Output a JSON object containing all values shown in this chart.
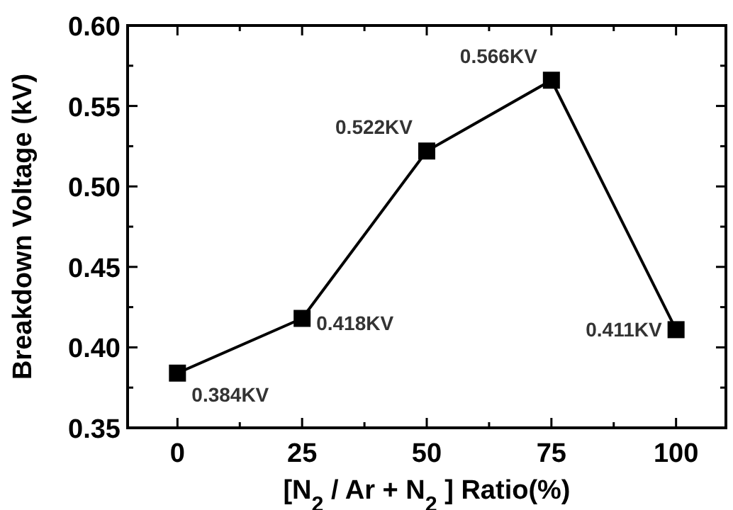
{
  "chart_data": {
    "type": "line",
    "xlabel": "[N$_{2}$ / Ar + N$_{2}$ ] Ratio(%)",
    "ylabel": "Breakdown Voltage (kV)",
    "x": [
      0,
      25,
      50,
      75,
      100
    ],
    "series": [
      {
        "color": "#000000",
        "values": [
          0.384,
          0.418,
          0.522,
          0.566,
          0.411
        ],
        "value_labels": [
          "0.384KV",
          "0.418KV",
          "0.522KV",
          "0.566KV",
          "0.411KV"
        ]
      }
    ],
    "xlim": [
      -10,
      110
    ],
    "xticks": [
      0,
      {
        "value": 12.5,
        "label": null
      },
      25,
      {
        "value": 37.5,
        "label": null
      },
      50,
      {
        "value": 62.5,
        "label": null
      },
      75,
      {
        "value": 87.5,
        "label": null
      },
      100
    ],
    "ylim": [
      0.35,
      0.6
    ],
    "yticks": [
      {
        "value": 0.35,
        "label": "0.35"
      },
      {
        "value": 0.375,
        "label": null
      },
      {
        "value": 0.4,
        "label": "0.40"
      },
      {
        "value": 0.425,
        "label": null
      },
      {
        "value": 0.45,
        "label": "0.45"
      },
      {
        "value": 0.475,
        "label": null
      },
      {
        "value": 0.5,
        "label": "0.50"
      },
      {
        "value": 0.525,
        "label": null
      },
      {
        "value": 0.55,
        "label": "0.55"
      },
      {
        "value": 0.575,
        "label": null
      },
      {
        "value": 0.6,
        "label": "0.60"
      }
    ],
    "marker": "square",
    "line_style": "solid",
    "grid": false
  }
}
